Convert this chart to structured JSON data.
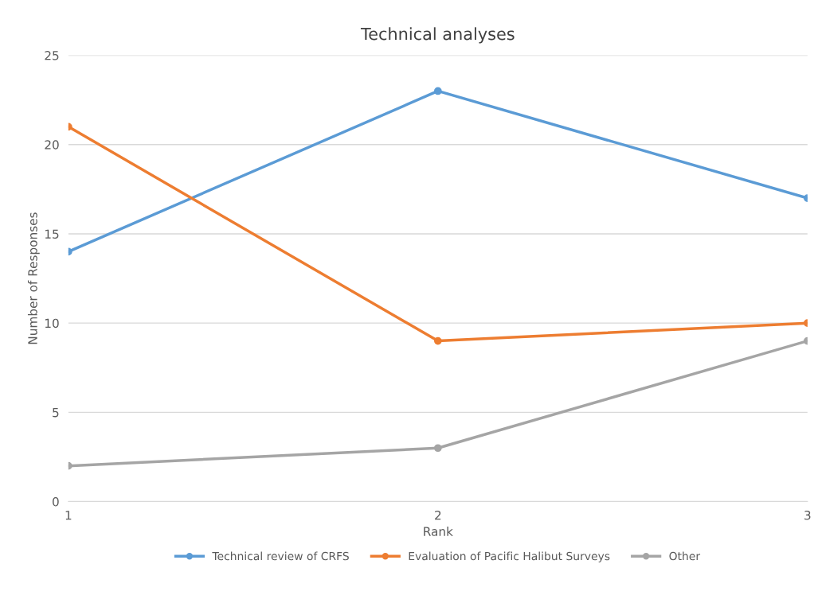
{
  "chart_data": {
    "type": "line",
    "title": "Technical analyses",
    "xlabel": "Rank",
    "ylabel": "Number of Responses",
    "categories": [
      "1",
      "2",
      "3"
    ],
    "series": [
      {
        "name": "Technical review of CRFS",
        "color": "#5b9bd5",
        "values": [
          14,
          23,
          17
        ]
      },
      {
        "name": "Evaluation of Pacific Halibut Surveys",
        "color": "#ed7d31",
        "values": [
          21,
          9,
          10
        ]
      },
      {
        "name": "Other",
        "color": "#a5a5a5",
        "values": [
          2,
          3,
          9
        ]
      }
    ],
    "ylim": [
      0,
      25
    ],
    "yticks": [
      0,
      5,
      10,
      15,
      20,
      25
    ],
    "grid": "y",
    "legend": "bottom",
    "marker": "circle",
    "line_style": "solid"
  }
}
